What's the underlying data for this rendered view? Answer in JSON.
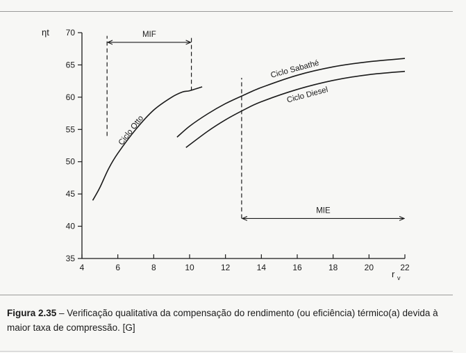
{
  "chart_data": {
    "type": "line",
    "ylabel": "ηt",
    "xlabel": "r",
    "xlabel_sub": "v",
    "xlim": [
      4,
      22
    ],
    "ylim": [
      35,
      70
    ],
    "xticks": [
      4,
      6,
      8,
      10,
      12,
      14,
      16,
      18,
      20,
      22
    ],
    "yticks": [
      35,
      40,
      45,
      50,
      55,
      60,
      65,
      70
    ],
    "grid": false,
    "series": [
      {
        "name": "Ciclo Otto",
        "x": [
          4.6,
          5.0,
          5.5,
          6.0,
          7.0,
          8.0,
          9.0,
          9.6,
          10.0,
          10.7
        ],
        "y": [
          44.0,
          46.0,
          49.0,
          51.3,
          55.0,
          58.0,
          60.0,
          60.8,
          61.0,
          61.6
        ]
      },
      {
        "name": "Ciclo Sabathé",
        "x": [
          9.3,
          10.0,
          11.0,
          12.0,
          13.0,
          14.0,
          16.0,
          18.0,
          20.0,
          22.0
        ],
        "y": [
          53.8,
          55.5,
          57.4,
          59.0,
          60.3,
          61.5,
          63.4,
          64.7,
          65.5,
          66.0
        ]
      },
      {
        "name": "Ciclo Diesel",
        "x": [
          9.8,
          11.0,
          12.0,
          13.0,
          14.0,
          16.0,
          18.0,
          20.0,
          22.0
        ],
        "y": [
          52.2,
          54.7,
          56.5,
          58.0,
          59.3,
          61.2,
          62.6,
          63.5,
          64.0
        ]
      }
    ],
    "annotations": [
      {
        "label": "MIF",
        "x_from": 5.4,
        "x_to": 10.1,
        "arrow_y": 68.5,
        "dashed_lines": [
          {
            "x": 5.4,
            "y_from": 54.0,
            "y_to": 69.5
          },
          {
            "x": 10.1,
            "y_from": 61.0,
            "y_to": 69.5
          }
        ]
      },
      {
        "label": "MIE",
        "x_from": 12.9,
        "x_to": 22.0,
        "arrow_y": 41.2,
        "dashed_lines": [
          {
            "x": 12.9,
            "y_from": 41.2,
            "y_to": 63.0
          }
        ]
      }
    ]
  },
  "caption": {
    "number": "Figura 2.35",
    "dash": " – ",
    "text": "Verificação qualitativa da compensação do rendimento (ou eficiência) térmico(a) devida à maior taxa de compressão. [G]"
  }
}
